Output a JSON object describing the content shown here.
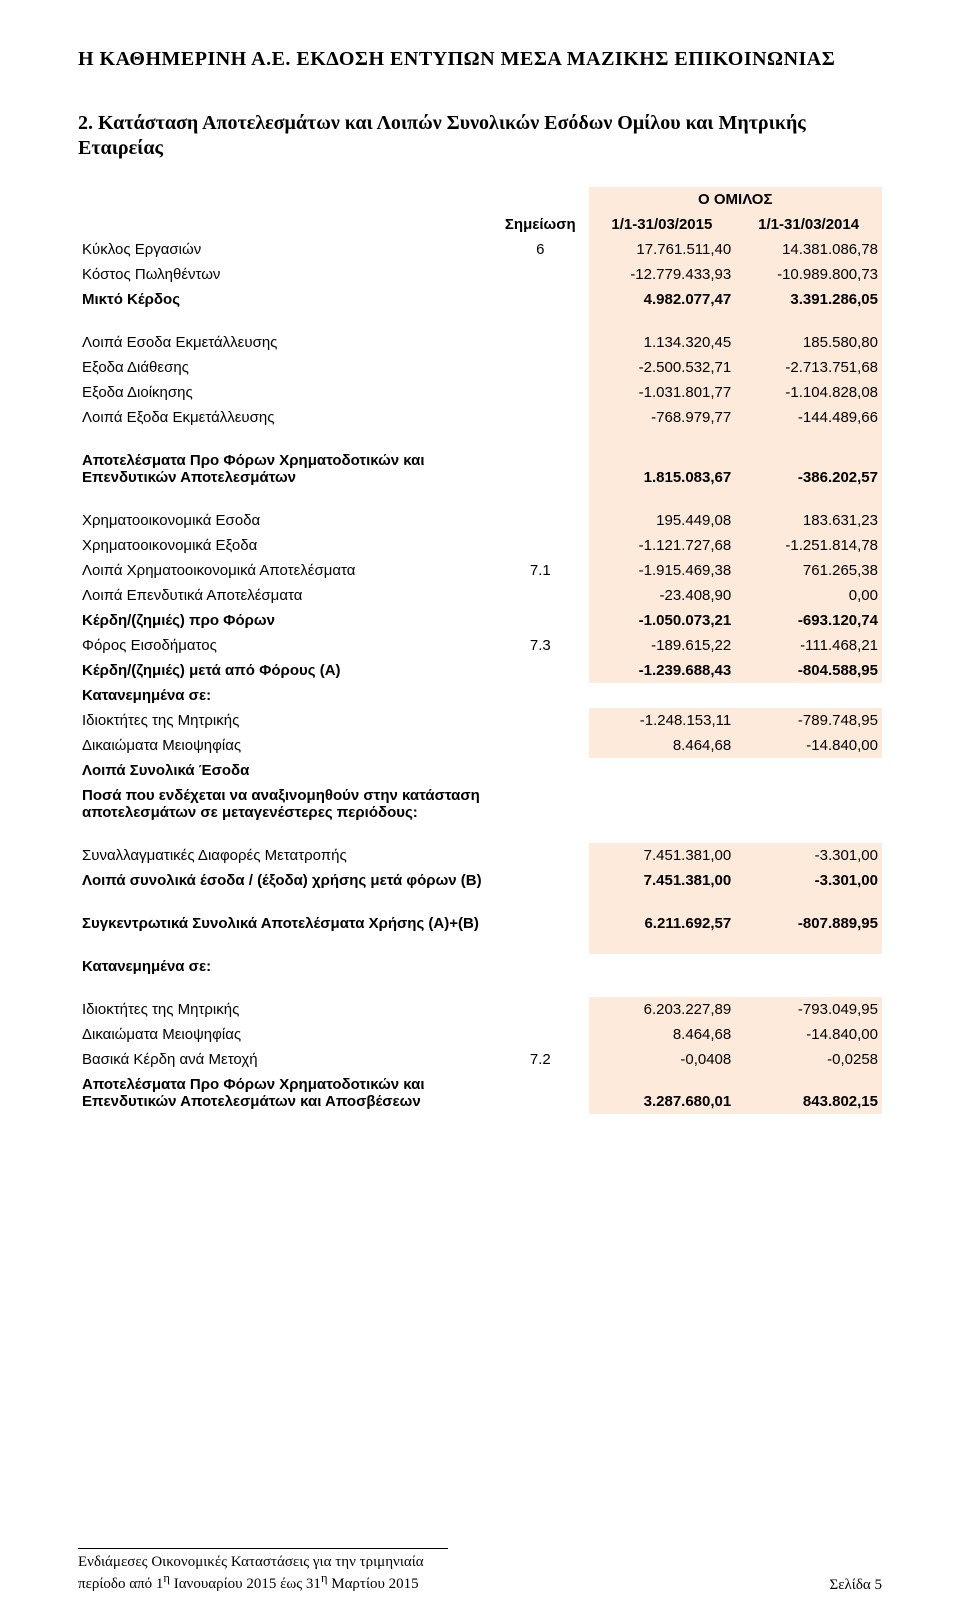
{
  "colors": {
    "background": "#ffffff",
    "text": "#000000",
    "shaded_bg": "#fdeada"
  },
  "typography": {
    "header_font": "Times New Roman",
    "body_font": "Arial",
    "header_size_pt": 15,
    "body_size_pt": 11
  },
  "header": {
    "org": "Η ΚΑΘΗΜΕΡΙΝΗ Α.Ε. ΕΚΔΟΣΗ ΕΝΤΥΠΩΝ ΜΕΣΑ ΜΑΖΙΚΗΣ ΕΠΙΚΟΙΝΩΝΙΑΣ"
  },
  "section": {
    "title": "2. Κατάσταση Αποτελεσμάτων και Λοιπών Συνολικών Εσόδων Ομίλου και Μητρικής Εταιρείας"
  },
  "table": {
    "group_header": "Ο ΟΜΙΛΟΣ",
    "note_header": "Σημείωση",
    "period1": "1/1-31/03/2015",
    "period2": "1/1-31/03/2014",
    "rows": [
      {
        "label": "Κύκλος Εργασιών",
        "note": "6",
        "v1": "17.761.511,40",
        "v2": "14.381.086,78",
        "spacing": "normal"
      },
      {
        "label": "Κόστος Πωληθέντων",
        "note": "",
        "v1": "-12.779.433,93",
        "v2": "-10.989.800,73",
        "spacing": "normal"
      },
      {
        "label": "Μικτό Κέρδος",
        "note": "",
        "v1": "4.982.077,47",
        "v2": "3.391.286,05",
        "bold": true,
        "spacing": "after"
      },
      {
        "label": "Λοιπά Εσοδα Εκμετάλλευσης",
        "note": "",
        "v1": "1.134.320,45",
        "v2": "185.580,80",
        "spacing": "normal"
      },
      {
        "label": "Εξοδα Διάθεσης",
        "note": "",
        "v1": "-2.500.532,71",
        "v2": "-2.713.751,68",
        "spacing": "normal"
      },
      {
        "label": "Εξοδα Διοίκησης",
        "note": "",
        "v1": "-1.031.801,77",
        "v2": "-1.104.828,08",
        "spacing": "normal"
      },
      {
        "label": "Λοιπά Εξοδα Εκμετάλλευσης",
        "note": "",
        "v1": "-768.979,77",
        "v2": "-144.489,66",
        "spacing": "after"
      },
      {
        "label": "Αποτελέσματα Προ Φόρων Χρηματοδοτικών και Επενδυτικών Αποτελεσμάτων",
        "note": "",
        "v1": "1.815.083,67",
        "v2": "-386.202,57",
        "bold": true,
        "spacing": "after"
      },
      {
        "label": "Χρηματοοικονομικά Εσοδα",
        "note": "",
        "v1": "195.449,08",
        "v2": "183.631,23",
        "spacing": "normal"
      },
      {
        "label": "Χρηματοοικονομικά Εξοδα",
        "note": "",
        "v1": "-1.121.727,68",
        "v2": "-1.251.814,78",
        "spacing": "normal"
      },
      {
        "label": "Λοιπά Χρηματοοικονομικά Αποτελέσματα",
        "note": "7.1",
        "v1": "-1.915.469,38",
        "v2": "761.265,38",
        "spacing": "normal"
      },
      {
        "label": "Λοιπά Επενδυτικά Αποτελέσματα",
        "note": "",
        "v1": "-23.408,90",
        "v2": "0,00",
        "spacing": "normal"
      },
      {
        "label": "Κέρδη/(ζημιές) προ Φόρων",
        "note": "",
        "v1": "-1.050.073,21",
        "v2": "-693.120,74",
        "bold": true,
        "spacing": "normal"
      },
      {
        "label": "Φόρος Εισοδήματος",
        "note": "7.3",
        "v1": "-189.615,22",
        "v2": "-111.468,21",
        "spacing": "normal"
      },
      {
        "label": "Κέρδη/(ζημιές) μετά από Φόρους (Α)",
        "note": "",
        "v1": "-1.239.688,43",
        "v2": "-804.588,95",
        "bold": true,
        "spacing": "normal"
      },
      {
        "label": "Κατανεμημένα σε:",
        "note": "",
        "v1": "",
        "v2": "",
        "bold": true,
        "no_shade": true,
        "spacing": "normal"
      },
      {
        "label": "Ιδιοκτήτες της Μητρικής",
        "note": "",
        "v1": "-1.248.153,11",
        "v2": "-789.748,95",
        "spacing": "normal"
      },
      {
        "label": "Δικαιώματα Μειοψηφίας",
        "note": "",
        "v1": "8.464,68",
        "v2": "-14.840,00",
        "spacing": "normal"
      },
      {
        "label": "Λοιπά Συνολικά Έσοδα",
        "note": "",
        "v1": "",
        "v2": "",
        "bold": true,
        "no_shade": true,
        "spacing": "normal"
      },
      {
        "label": "Ποσά που ενδέχεται να αναξινομηθούν στην κατάσταση αποτελεσμάτων σε μεταγενέστερες περιόδους:",
        "note": "",
        "v1": "",
        "v2": "",
        "bold": true,
        "no_shade": true,
        "spacing": "after"
      },
      {
        "label": "Συναλλαγματικές Διαφορές Μετατροπής",
        "note": "",
        "v1": "7.451.381,00",
        "v2": "-3.301,00",
        "spacing": "normal"
      },
      {
        "label": "Λοιπά συνολικά έσοδα / (έξοδα) χρήσης μετά φόρων (Β)",
        "note": "",
        "v1": "7.451.381,00",
        "v2": "-3.301,00",
        "bold": true,
        "spacing": "after"
      },
      {
        "label": "Συγκεντρωτικά Συνολικά Αποτελέσματα Χρήσης  (Α)+(Β)",
        "note": "",
        "v1": "6.211.692,57",
        "v2": "-807.889,95",
        "bold": true,
        "spacing": "after"
      },
      {
        "label": "Κατανεμημένα σε:",
        "note": "",
        "v1": "",
        "v2": "",
        "bold": true,
        "no_shade": true,
        "spacing": "after"
      },
      {
        "label": "Ιδιοκτήτες της Μητρικής",
        "note": "",
        "v1": "6.203.227,89",
        "v2": "-793.049,95",
        "spacing": "normal"
      },
      {
        "label": "Δικαιώματα Μειοψηφίας",
        "note": "",
        "v1": "8.464,68",
        "v2": "-14.840,00",
        "spacing": "normal"
      },
      {
        "label": "Βασικά Κέρδη ανά Μετοχή",
        "note": "7.2",
        "v1": "-0,0408",
        "v2": "-0,0258",
        "spacing": "normal"
      },
      {
        "label": "Αποτελέσματα Προ Φόρων Χρηματοδοτικών και Επενδυτικών Αποτελεσμάτων και Αποσβέσεων",
        "note": "",
        "v1": "3.287.680,01",
        "v2": "843.802,15",
        "bold": true,
        "spacing": "normal"
      }
    ]
  },
  "footer": {
    "line1": "Ενδιάμεσες Οικονομικές Καταστάσεις για την τριμηνιαία",
    "line2_prefix": "περίοδο από 1",
    "line2_sup1": "η",
    "line2_mid": " Ιανουαρίου 2015 έως  31",
    "line2_sup2": "η",
    "line2_suffix": "  Μαρτίου 2015",
    "page": "Σελίδα 5"
  }
}
